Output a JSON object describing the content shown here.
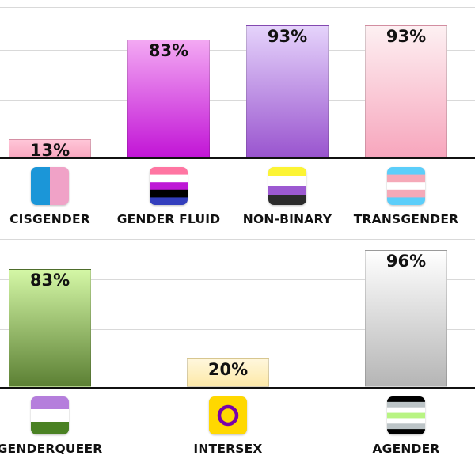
{
  "chart_data": [
    {
      "type": "bar",
      "categories": [
        "CISGENDER",
        "GENDER FLUID",
        "NON-BINARY",
        "TRANSGENDER"
      ],
      "values": [
        13,
        83,
        93,
        93
      ],
      "value_labels": [
        "13%",
        "83%",
        "93%",
        "93%"
      ],
      "ylim": [
        0,
        100
      ],
      "title": "",
      "xlabel": "",
      "ylabel": "",
      "grid": true,
      "colors": [
        [
          "#ffc6d8",
          "#f9a8c0"
        ],
        [
          "#f3a9f3",
          "#c216d6"
        ],
        [
          "#e5d3fb",
          "#9a55cf"
        ],
        [
          "#fdf0f2",
          "#f7a6bd"
        ]
      ]
    },
    {
      "type": "bar",
      "categories": [
        "GENDERQUEER",
        "INTERSEX",
        "AGENDER"
      ],
      "values": [
        83,
        20,
        96
      ],
      "value_labels": [
        "83%",
        "20%",
        "96%"
      ],
      "ylim": [
        0,
        100
      ],
      "title": "",
      "xlabel": "",
      "ylabel": "",
      "grid": true,
      "colors": [
        [
          "#d4f7a6",
          "#5c8034"
        ],
        [
          "#fff7dc",
          "#fde9a8"
        ],
        [
          "#ffffff",
          "#b5b5b5"
        ]
      ]
    }
  ],
  "flags": {
    "cisgender": [
      "#1b96d8",
      "#f0a2c7"
    ],
    "gender_fluid": [
      "#ff75a2",
      "#ffffff",
      "#be18d6",
      "#000000",
      "#333ebd"
    ],
    "non_binary": [
      "#fcf434",
      "#ffffff",
      "#9c59d1",
      "#2c2c2c"
    ],
    "transgender": [
      "#5bcefa",
      "#f5a9b8",
      "#ffffff",
      "#f5a9b8",
      "#5bcefa"
    ],
    "genderqueer": [
      "#b57edc",
      "#ffffff",
      "#4a8123"
    ],
    "intersex": [
      "#ffd800",
      "#7902aa"
    ],
    "agender": [
      "#000000",
      "#bcc4c7",
      "#ffffff",
      "#b8f483",
      "#ffffff",
      "#bcc4c7",
      "#000000"
    ]
  }
}
